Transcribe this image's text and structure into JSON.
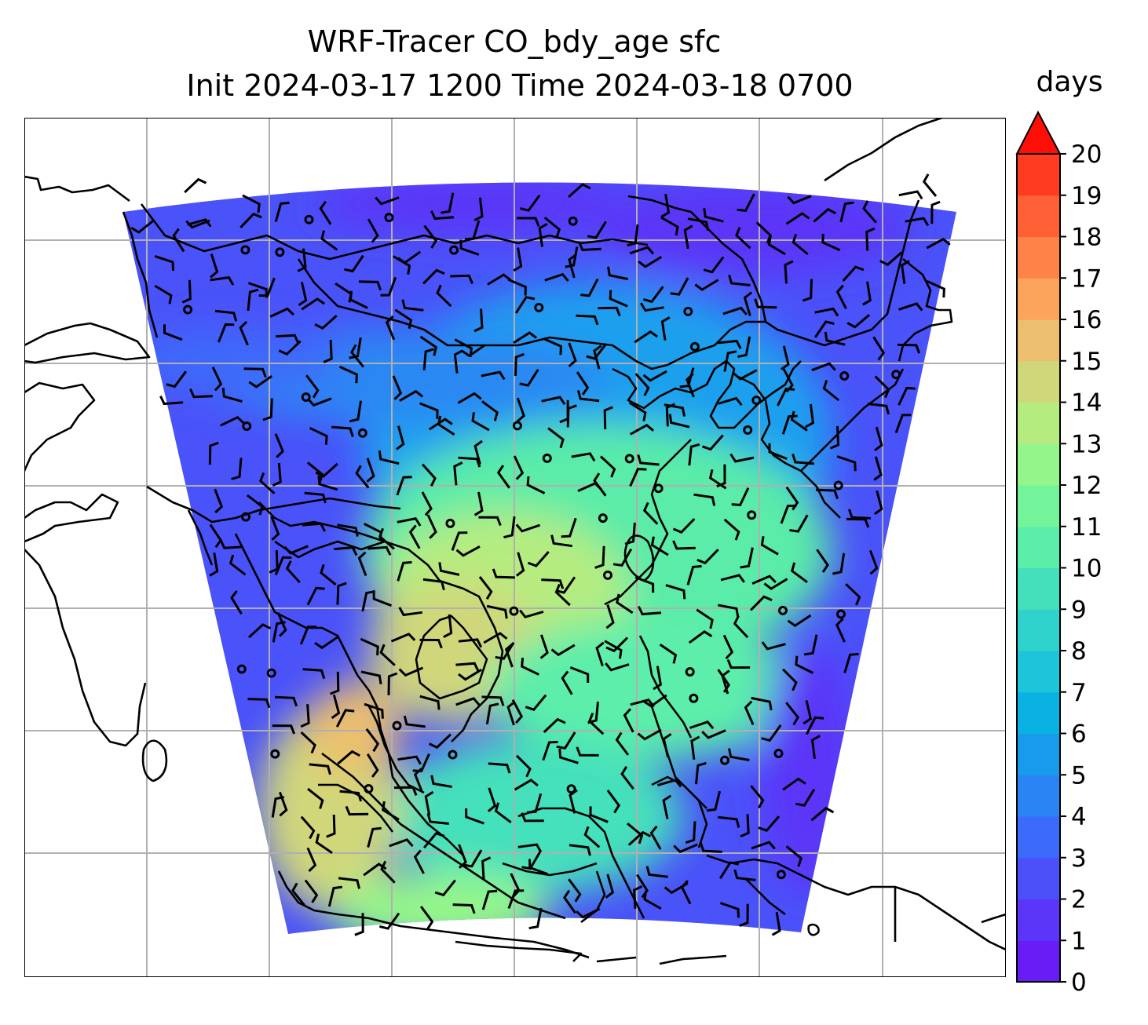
{
  "chart_data": {
    "type": "heatmap",
    "title_line1": "WRF-Tracer CO_bdy_age sfc",
    "title_line2": "Init 2024-03-17 1200 Time 2024-03-18 0700",
    "variable": "CO_bdy_age",
    "level": "sfc",
    "colorbar": {
      "label": "days",
      "min": 0,
      "max": 20,
      "ticks": [
        "0",
        "1",
        "2",
        "3",
        "4",
        "5",
        "6",
        "7",
        "8",
        "9",
        "10",
        "11",
        "12",
        "13",
        "14",
        "15",
        "16",
        "17",
        "18",
        "19",
        "20"
      ],
      "extend": "max",
      "colormap": "rainbow",
      "colors": [
        "#6a1cf6",
        "#5b36f8",
        "#4b50f9",
        "#3c6afa",
        "#2a84f3",
        "#199bec",
        "#0ab2e3",
        "#1ec4da",
        "#30d2cc",
        "#44e0bc",
        "#5beeaa",
        "#74f49a",
        "#94f68a",
        "#b5ec80",
        "#d0d77a",
        "#ecbf6e",
        "#fca35c",
        "#ff8349",
        "#ff6036",
        "#ff3c21",
        "#ff0d07"
      ]
    },
    "grid": true,
    "overlays": [
      "wind-barbs",
      "coastlines"
    ]
  }
}
